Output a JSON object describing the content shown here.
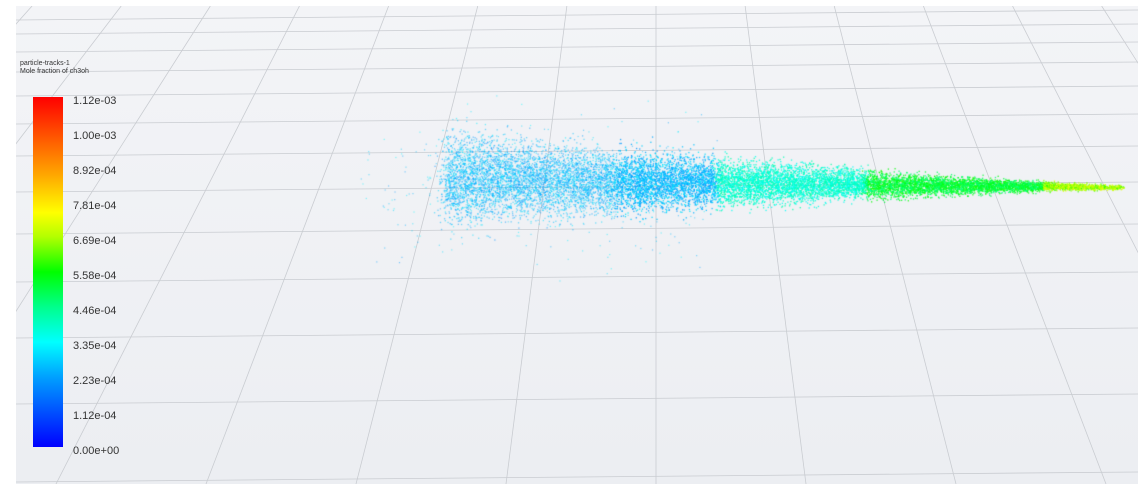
{
  "legend": {
    "title_line1": "particle-tracks-1",
    "title_line2": "Mole fraction of ch3oh",
    "ticks": [
      "1.12e-03",
      "1.00e-03",
      "8.92e-04",
      "7.81e-04",
      "6.69e-04",
      "5.58e-04",
      "4.46e-04",
      "3.35e-04",
      "2.23e-04",
      "1.12e-04",
      "0.00e+00"
    ],
    "colormap": [
      "#0000ff",
      "#0050ff",
      "#00a0ff",
      "#00ffff",
      "#00ff8c",
      "#00ff00",
      "#b2ff00",
      "#ffff00",
      "#ffa500",
      "#ff5a00",
      "#ff0000"
    ]
  },
  "scene": {
    "background": "#eef0f3",
    "grid_color": "#c9ccd1"
  }
}
